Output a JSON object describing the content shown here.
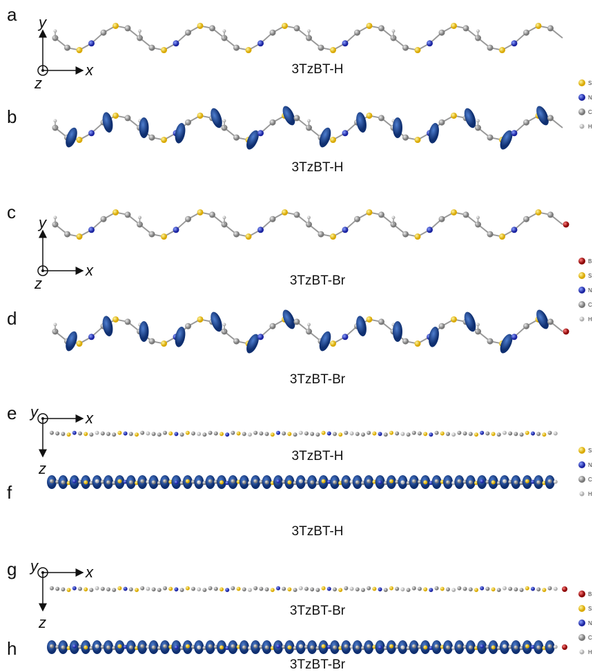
{
  "panels": [
    {
      "letter": "a",
      "label": "3TzBT-H"
    },
    {
      "letter": "b",
      "label": "3TzBT-H"
    },
    {
      "letter": "c",
      "label": "3TzBT-Br"
    },
    {
      "letter": "d",
      "label": "3TzBT-Br"
    },
    {
      "letter": "e",
      "label": "3TzBT-H"
    },
    {
      "letter": "f",
      "label": "3TzBT-H"
    },
    {
      "letter": "g",
      "label": "3TzBT-Br"
    },
    {
      "letter": "h",
      "label": "3TzBT-Br"
    }
  ],
  "axes": [
    {
      "vertical": "y",
      "horizontal": "x",
      "out_of_plane": "z"
    },
    {
      "vertical": "y",
      "horizontal": "x",
      "out_of_plane": "z"
    },
    {
      "vertical": "z",
      "horizontal": "x",
      "out_of_plane": "y"
    },
    {
      "vertical": "z",
      "horizontal": "x",
      "out_of_plane": "y"
    }
  ],
  "legends": [
    [
      "S",
      "N",
      "C",
      "H"
    ],
    [
      "B",
      "S",
      "N",
      "C",
      "H"
    ],
    [
      "S",
      "N",
      "C",
      "H"
    ],
    [
      "B",
      "S",
      "N",
      "C",
      "H"
    ]
  ]
}
